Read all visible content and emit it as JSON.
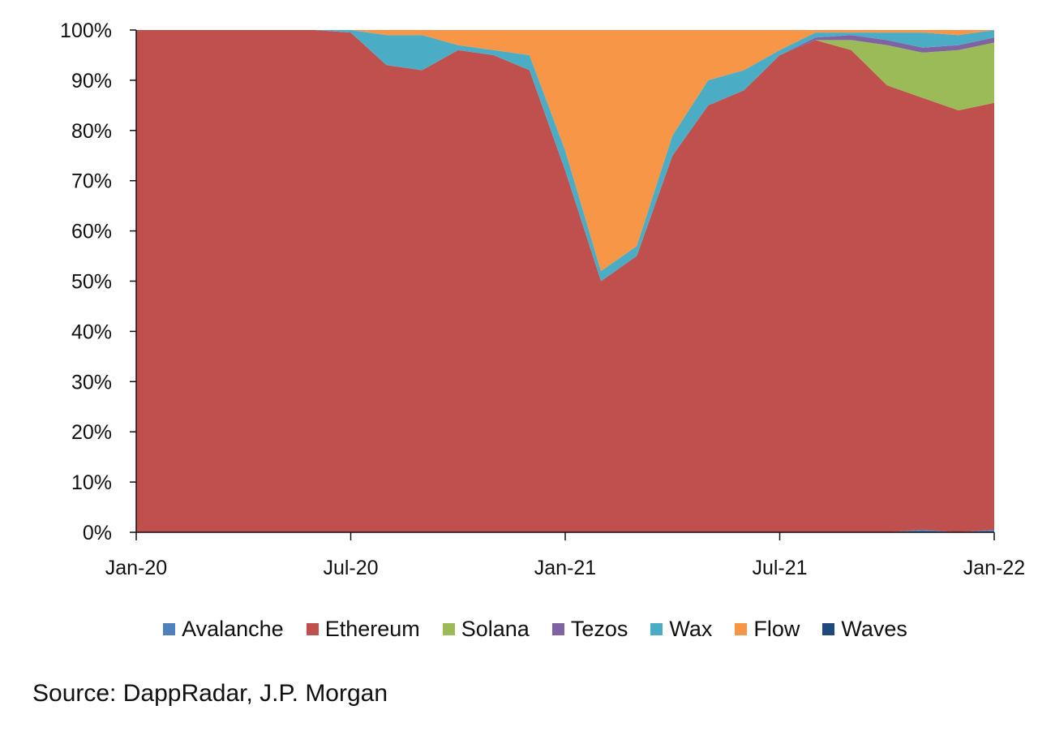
{
  "chart_data": {
    "type": "area",
    "stacked": true,
    "normalized_percent": true,
    "x_ticks": [
      "Jan-20",
      "Jul-20",
      "Jan-21",
      "Jul-21",
      "Jan-22"
    ],
    "y_ticks": [
      "0%",
      "10%",
      "20%",
      "30%",
      "40%",
      "50%",
      "60%",
      "70%",
      "80%",
      "90%",
      "100%"
    ],
    "ylim": [
      0,
      100
    ],
    "grid": false,
    "legend_position": "bottom",
    "series": [
      {
        "name": "Avalanche",
        "color": "#4f81bd"
      },
      {
        "name": "Ethereum",
        "color": "#c0504d"
      },
      {
        "name": "Solana",
        "color": "#9bbb59"
      },
      {
        "name": "Tezos",
        "color": "#8064a2"
      },
      {
        "name": "Wax",
        "color": "#4bacc6"
      },
      {
        "name": "Flow",
        "color": "#f79646"
      },
      {
        "name": "Waves",
        "color": "#1f497d"
      }
    ],
    "x": [
      "2020-01",
      "2020-02",
      "2020-03",
      "2020-04",
      "2020-05",
      "2020-06",
      "2020-07",
      "2020-08",
      "2020-09",
      "2020-10",
      "2020-11",
      "2020-12",
      "2021-01",
      "2021-02",
      "2021-03",
      "2021-04",
      "2021-05",
      "2021-06",
      "2021-07",
      "2021-08",
      "2021-09",
      "2021-10",
      "2021-11",
      "2021-12",
      "2022-01"
    ],
    "values": {
      "Avalanche": [
        0,
        0,
        0,
        0,
        0,
        0,
        0,
        0,
        0,
        0,
        0,
        0,
        0,
        0,
        0,
        0,
        0,
        0,
        0,
        0,
        0,
        0,
        0.5,
        0,
        0.5
      ],
      "Ethereum": [
        100,
        100,
        100,
        100,
        100,
        100,
        99.5,
        93,
        92,
        96,
        95,
        92,
        72,
        50,
        55,
        75,
        85,
        88,
        95,
        98,
        96,
        89,
        86,
        84,
        85
      ],
      "Solana": [
        0,
        0,
        0,
        0,
        0,
        0,
        0,
        0,
        0,
        0,
        0,
        0,
        0,
        0,
        0,
        0,
        0,
        0,
        0,
        0,
        2,
        8,
        9,
        12,
        12
      ],
      "Tezos": [
        0,
        0,
        0,
        0,
        0,
        0,
        0,
        0,
        0,
        0,
        0,
        0,
        0,
        0,
        0,
        0,
        0,
        0,
        0,
        0.5,
        1,
        1,
        1,
        1,
        1
      ],
      "Wax": [
        0,
        0,
        0,
        0,
        0,
        0,
        0.5,
        6,
        7,
        1,
        1,
        3,
        4,
        2,
        2,
        4,
        5,
        4,
        1,
        1,
        0.5,
        1.5,
        3,
        2,
        1.5
      ],
      "Flow": [
        0,
        0,
        0,
        0,
        0,
        0,
        0,
        1,
        1,
        3,
        4,
        5,
        24,
        48,
        43,
        21,
        10,
        8,
        4,
        1,
        0.5,
        0.5,
        0.5,
        1,
        0
      ],
      "Waves": [
        0,
        0,
        0,
        0,
        0,
        0,
        0,
        0,
        0,
        0,
        0,
        0,
        0,
        0,
        0,
        0,
        0,
        0,
        0,
        0,
        0,
        0,
        0,
        0,
        0
      ]
    }
  },
  "source_text": "Source: DappRadar, J.P. Morgan"
}
